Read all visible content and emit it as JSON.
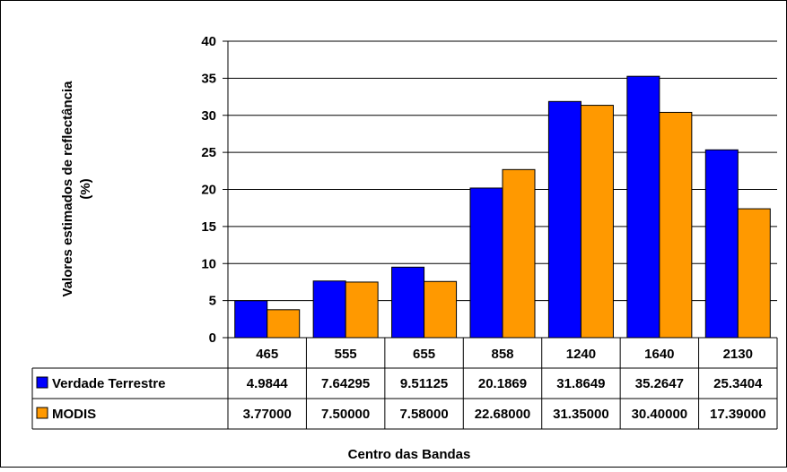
{
  "chart_data": {
    "type": "bar",
    "title": "",
    "xlabel": "Centro das Bandas",
    "ylabel": "Valores estimados de reflectância (%)",
    "ylabel_lines": [
      "Valores estimados de reflectância",
      "(%)"
    ],
    "ylim": [
      0,
      40
    ],
    "yticks": [
      "0",
      "5",
      "10",
      "15",
      "20",
      "25",
      "30",
      "35",
      "40"
    ],
    "grid": true,
    "legend": "data-table",
    "categories": [
      "465",
      "555",
      "655",
      "858",
      "1240",
      "1640",
      "2130"
    ],
    "series": [
      {
        "name": "Verdade Terrestre",
        "color": "#0000ff",
        "values": [
          4.9844,
          7.64295,
          9.51125,
          20.1869,
          31.8649,
          35.2647,
          25.3404
        ],
        "labels": [
          "4.9844",
          "7.64295",
          "9.51125",
          "20.1869",
          "31.8649",
          "35.2647",
          "25.3404"
        ]
      },
      {
        "name": "MODIS",
        "color": "#ff9900",
        "values": [
          3.77,
          7.5,
          7.58,
          22.68,
          31.35,
          30.4,
          17.39
        ],
        "labels": [
          "3.77000",
          "7.50000",
          "7.58000",
          "22.68000",
          "31.35000",
          "30.40000",
          "17.39000"
        ]
      }
    ]
  }
}
